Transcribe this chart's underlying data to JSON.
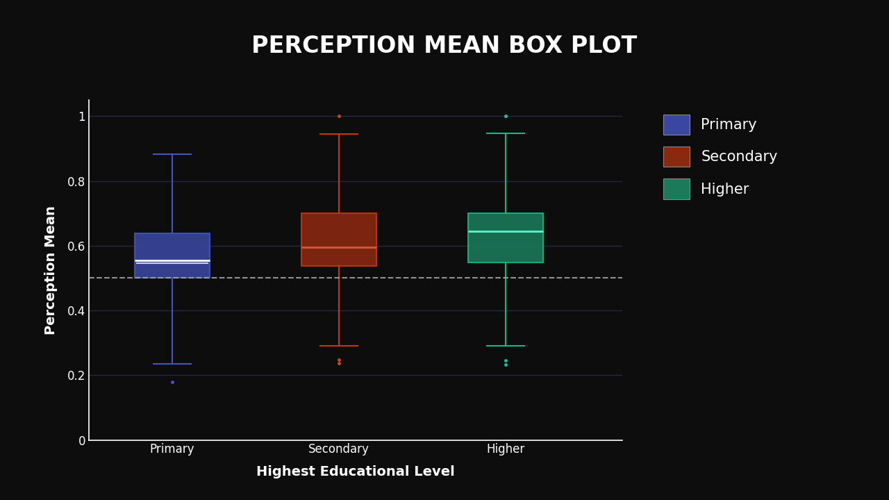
{
  "title": "PERCEPTION MEAN BOX PLOT",
  "xlabel": "Highest Educational Level",
  "ylabel": "Perception Mean",
  "background_color": "#0d0d0d",
  "categories": [
    "Primary",
    "Secondary",
    "Higher"
  ],
  "box_colors": [
    "#3a47a0",
    "#8b2810",
    "#1a7a5a"
  ],
  "median_colors": [
    "#ffffff",
    "#dd5533",
    "#55ffcc"
  ],
  "whisker_colors": [
    "#4455bb",
    "#cc3311",
    "#11bb88"
  ],
  "flier_colors": [
    "#4455cc",
    "#cc4422",
    "#22bb99"
  ],
  "boxes": [
    {
      "q1": 0.5,
      "median": 0.555,
      "q3": 0.638,
      "mean": 0.545,
      "whislo": 0.235,
      "whishi": 0.882,
      "fliers": [
        0.18
      ]
    },
    {
      "q1": 0.538,
      "median": 0.595,
      "q3": 0.7,
      "mean": 0.595,
      "whislo": 0.29,
      "whishi": 0.945,
      "fliers": [
        0.238,
        0.248,
        1.0
      ]
    },
    {
      "q1": 0.548,
      "median": 0.645,
      "q3": 0.7,
      "mean": 0.645,
      "whislo": 0.29,
      "whishi": 0.948,
      "fliers": [
        0.232,
        0.245,
        1.0,
        1.0
      ]
    }
  ],
  "reference_line": 0.5,
  "ylim": [
    0,
    1.05
  ],
  "yticks": [
    0,
    0.2,
    0.4,
    0.6,
    0.8,
    1
  ],
  "grid_color": "#252545",
  "text_color": "#ffffff",
  "title_fontsize": 24,
  "label_fontsize": 14,
  "tick_fontsize": 12,
  "legend_labels": [
    "Primary",
    "Secondary",
    "Higher"
  ],
  "legend_colors": [
    "#3a47a0",
    "#8b2810",
    "#1a7a5a"
  ]
}
